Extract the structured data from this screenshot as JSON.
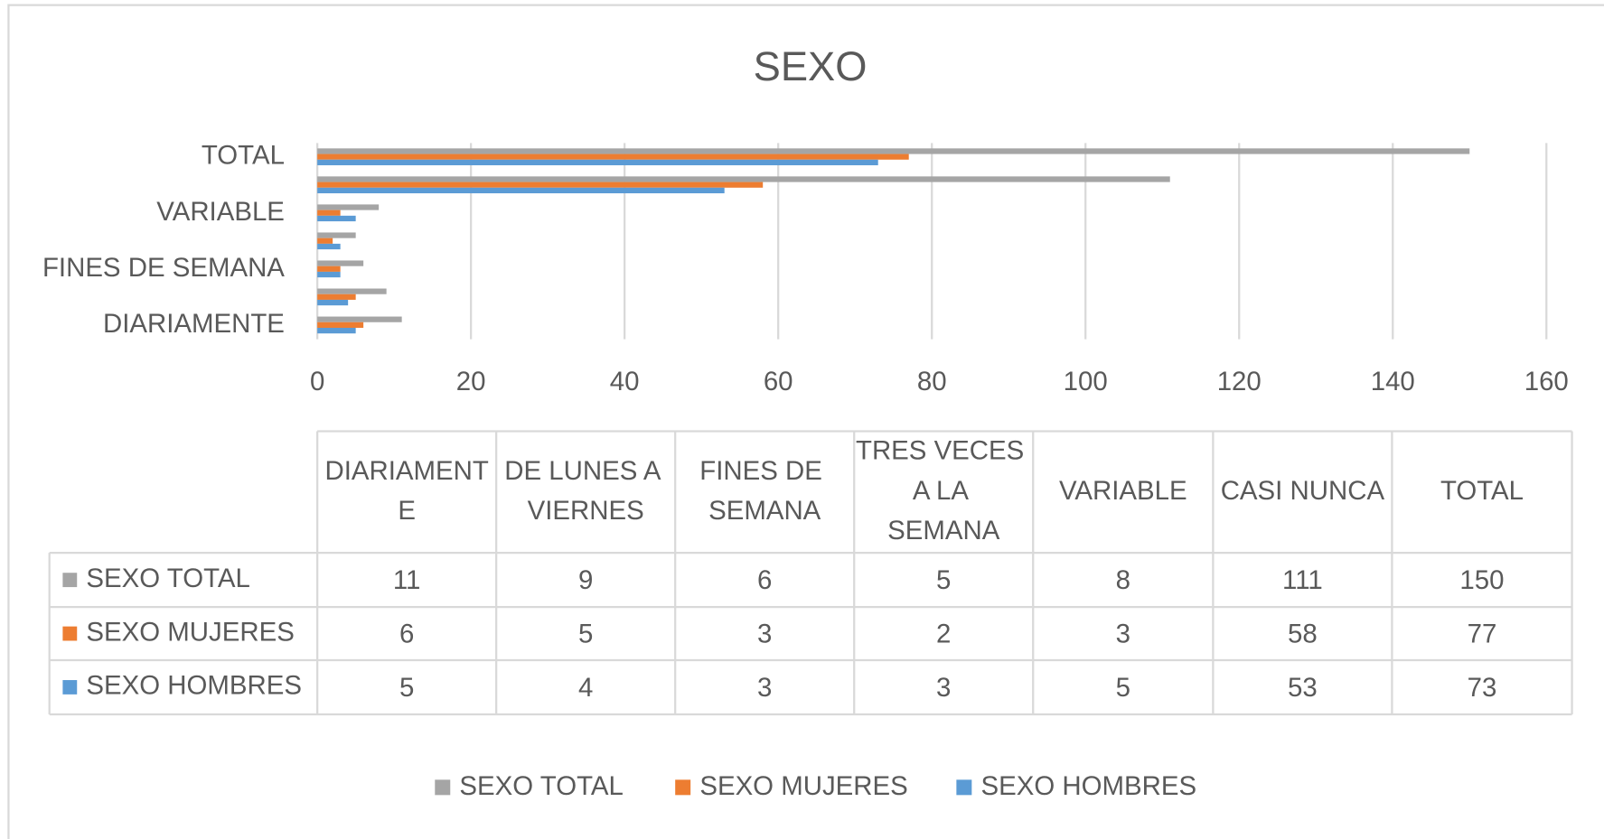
{
  "chart_data": {
    "type": "bar",
    "orientation": "horizontal",
    "title": "SEXO",
    "categories": [
      "DIARIAMENTE",
      "DE LUNES A VIERNES",
      "FINES DE SEMANA",
      "TRES VECES A LA SEMANA",
      "VARIABLE",
      "CASI NUNCA",
      "TOTAL"
    ],
    "series": [
      {
        "name": "SEXO TOTAL",
        "color": "#a5a5a5",
        "values": [
          11,
          9,
          6,
          5,
          8,
          111,
          150
        ]
      },
      {
        "name": "SEXO MUJERES",
        "color": "#ed7d31",
        "values": [
          6,
          5,
          3,
          2,
          3,
          58,
          77
        ]
      },
      {
        "name": "SEXO HOMBRES",
        "color": "#5b9bd5",
        "values": [
          5,
          4,
          3,
          3,
          5,
          53,
          73
        ]
      }
    ],
    "xlim": [
      0,
      160
    ],
    "xticks": [
      0,
      20,
      40,
      60,
      80,
      100,
      120,
      140,
      160
    ],
    "grid": true,
    "legend": "bottom",
    "data_table": true
  }
}
